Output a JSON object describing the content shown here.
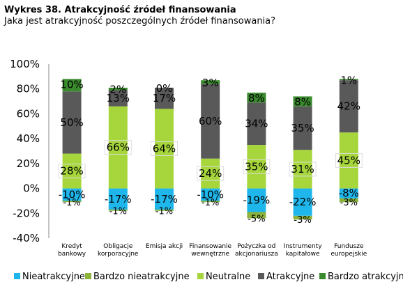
{
  "title": "Wykres 38. Atrakcyjność źródeł finansowania",
  "subtitle": "Jaka jest atrakcyjność poszczególnych źródeł finansowania?",
  "chart_data": {
    "type": "bar",
    "stacked": true,
    "categories": [
      [
        "Kredyt",
        "bankowy"
      ],
      [
        "Obligacje",
        "korporacyjne"
      ],
      [
        "Emisja akcji"
      ],
      [
        "Finansowanie",
        "wewnętrzne"
      ],
      [
        "Pożyczka od",
        "akcjonariusza"
      ],
      [
        "Instrumenty",
        "kapitałowe"
      ],
      [
        "Fundusze",
        "europejskie"
      ]
    ],
    "series": [
      {
        "name": "Nieatrakcyjne",
        "color": "#1fb6ec",
        "values": [
          -10,
          -17,
          -17,
          -10,
          -19,
          -22,
          -8
        ]
      },
      {
        "name": "Bardzo nieatrakcyjne",
        "color": "#8cb33a",
        "values": [
          -1,
          -1,
          -1,
          -1,
          -5,
          -3,
          -3
        ]
      },
      {
        "name": "Neutralne",
        "color": "#a6d63c",
        "values": [
          28,
          66,
          64,
          24,
          35,
          31,
          45
        ]
      },
      {
        "name": "Atrakcyjne",
        "color": "#595959",
        "values": [
          50,
          13,
          17,
          60,
          34,
          35,
          42
        ]
      },
      {
        "name": "Bardzo atrakcyjne",
        "color": "#3a8a2e",
        "values": [
          10,
          2,
          0,
          3,
          8,
          8,
          1
        ]
      }
    ],
    "y_ticks": [
      "-40%",
      "-20%",
      "0%",
      "20%",
      "40%",
      "60%",
      "80%",
      "100%"
    ],
    "ylim": [
      -40,
      100
    ],
    "legend_position": "bottom",
    "grid": false
  }
}
